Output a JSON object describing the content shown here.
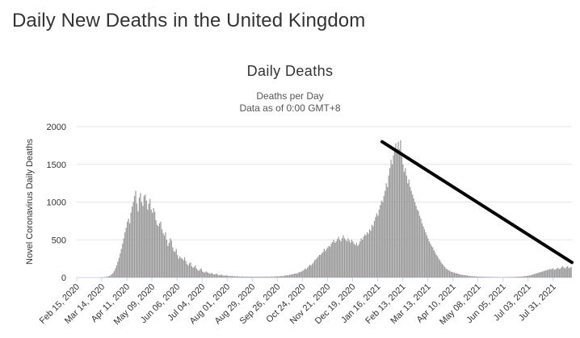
{
  "page": {
    "title": "Daily New Deaths in the United Kingdom"
  },
  "chart_data": {
    "type": "bar",
    "title": "Daily Deaths",
    "subtitle": "Deaths per Day",
    "subtitle2": "Data as of 0:00 GMT+8",
    "ylabel": "Novel Coronavirus Daily Deaths",
    "xlabel": "",
    "ylim": [
      0,
      2000
    ],
    "yticks": [
      0,
      500,
      1000,
      1500,
      2000
    ],
    "x_start": "Feb 15, 2020",
    "x_end": "Aug 21, 2021",
    "x_tick_labels": [
      "Feb 15, 2020",
      "Mar 14, 2020",
      "Apr 11, 2020",
      "May 09, 2020",
      "Jun 06, 2020",
      "Jul 04, 2020",
      "Aug 01, 2020",
      "Aug 29, 2020",
      "Sep 26, 2020",
      "Oct 24, 2020",
      "Nov 21, 2020",
      "Dec 19, 2020",
      "Jan 16, 2021",
      "Feb 13, 2021",
      "Mar 13, 2021",
      "Apr 10, 2021",
      "May 08, 2021",
      "Jun 05, 2021",
      "Jul 03, 2021",
      "Jul 31, 2021"
    ],
    "series": [
      {
        "values": [
          0,
          0,
          0,
          0,
          0,
          0,
          0,
          0,
          0,
          0,
          0,
          0,
          0,
          0,
          0,
          0,
          0,
          0,
          0,
          1,
          1,
          2,
          3,
          5,
          7,
          10,
          15,
          22,
          30,
          45,
          60,
          85,
          120,
          160,
          210,
          260,
          320,
          380,
          450,
          520,
          600,
          660,
          740,
          780,
          720,
          860,
          940,
          1000,
          1080,
          1150,
          980,
          880,
          1060,
          1120,
          1000,
          950,
          1080,
          1100,
          1020,
          900,
          980,
          1040,
          900,
          860,
          920,
          870,
          760,
          700,
          680,
          720,
          740,
          640,
          590,
          560,
          600,
          500,
          420,
          460,
          520,
          490,
          400,
          350,
          340,
          380,
          300,
          250,
          280,
          260,
          250,
          230,
          270,
          220,
          180,
          160,
          190,
          200,
          150,
          130,
          140,
          160,
          120,
          100,
          90,
          110,
          120,
          80,
          70,
          65,
          80,
          70,
          60,
          50,
          55,
          60,
          45,
          40,
          45,
          50,
          35,
          30,
          35,
          38,
          28,
          25,
          28,
          30,
          22,
          20,
          18,
          22,
          20,
          18,
          15,
          16,
          18,
          14,
          12,
          12,
          14,
          12,
          10,
          10,
          12,
          11,
          10,
          10,
          11,
          10,
          10,
          9,
          10,
          10,
          10,
          9,
          10,
          11,
          10,
          10,
          11,
          12,
          10,
          10,
          12,
          14,
          12,
          12,
          14,
          16,
          14,
          15,
          18,
          20,
          18,
          20,
          25,
          30,
          28,
          30,
          35,
          40,
          40,
          45,
          50,
          55,
          50,
          60,
          70,
          75,
          80,
          90,
          100,
          120,
          110,
          130,
          150,
          170,
          160,
          180,
          200,
          230,
          240,
          260,
          280,
          300,
          300,
          320,
          340,
          380,
          350,
          380,
          400,
          420,
          410,
          450,
          470,
          500,
          460,
          480,
          510,
          540,
          500,
          480,
          520,
          560,
          520,
          500,
          480,
          520,
          490,
          460,
          500,
          480,
          450,
          430,
          460,
          420,
          440,
          480,
          520,
          500,
          540,
          570,
          560,
          600,
          580,
          640,
          620,
          700,
          680,
          750,
          800,
          850,
          820,
          900,
          960,
          1020,
          1000,
          1080,
          1150,
          1250,
          1200,
          1350,
          1450,
          1560,
          1500,
          1620,
          1700,
          1780,
          1650,
          1800,
          1700,
          1820,
          1600,
          1500,
          1400,
          1450,
          1350,
          1250,
          1300,
          1200,
          1150,
          1100,
          1050,
          1000,
          950,
          900,
          880,
          820,
          780,
          720,
          680,
          640,
          600,
          560,
          520,
          480,
          450,
          420,
          400,
          360,
          330,
          300,
          280,
          250,
          230,
          200,
          180,
          160,
          140,
          120,
          110,
          100,
          90,
          80,
          75,
          70,
          65,
          60,
          55,
          50,
          45,
          40,
          38,
          35,
          32,
          30,
          28,
          25,
          22,
          20,
          18,
          17,
          16,
          15,
          14,
          13,
          12,
          11,
          11,
          10,
          10,
          9,
          9,
          8,
          8,
          8,
          7,
          7,
          7,
          6,
          6,
          6,
          6,
          5,
          5,
          5,
          5,
          5,
          5,
          5,
          6,
          6,
          6,
          6,
          7,
          7,
          8,
          8,
          9,
          10,
          10,
          12,
          12,
          14,
          16,
          18,
          20,
          22,
          25,
          28,
          30,
          35,
          40,
          45,
          50,
          55,
          60,
          65,
          70,
          75,
          80,
          85,
          90,
          95,
          100,
          105,
          110,
          110,
          115,
          120,
          100,
          110,
          120,
          130,
          110,
          120,
          140,
          150,
          130,
          120,
          140,
          150,
          125,
          130,
          140
        ]
      }
    ],
    "annotation_line": {
      "from": [
        "Jan 21, 2021",
        1800
      ],
      "to": [
        "Aug 21, 2021",
        200
      ],
      "color": "#000000"
    },
    "bar_color": "#999999",
    "grid": true,
    "legend": "none"
  }
}
